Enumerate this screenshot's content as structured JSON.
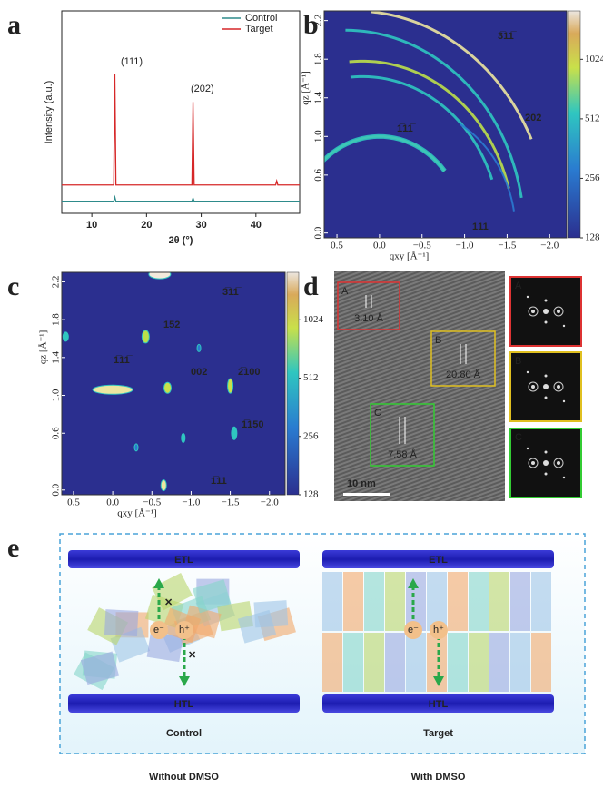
{
  "panel_labels": [
    "a",
    "b",
    "c",
    "d",
    "e"
  ],
  "chart_data": [
    {
      "type": "line",
      "xlabel": "2θ (°)",
      "ylabel": "Intensity (a.u.)",
      "xlim": [
        4.5,
        48
      ],
      "ylim": [
        0,
        1
      ],
      "xticks": [
        10,
        20,
        30,
        40
      ],
      "x": [
        4.5,
        14.0,
        14.2,
        14.4,
        28.3,
        28.5,
        28.7,
        43.6,
        43.8,
        44.0,
        48
      ],
      "series": [
        {
          "name": "Control",
          "color": "#2e8b8b",
          "values": [
            0.06,
            0.06,
            0.08,
            0.06,
            0.06,
            0.075,
            0.06,
            0.06,
            0.06,
            0.06,
            0.06
          ]
        },
        {
          "name": "Target",
          "color": "#d62728",
          "values": [
            0.14,
            0.14,
            0.69,
            0.14,
            0.14,
            0.55,
            0.14,
            0.14,
            0.16,
            0.14,
            0.14
          ]
        }
      ],
      "annotations": [
        "(111)",
        "(202)"
      ]
    },
    {
      "type": "heatmap",
      "xlabel": "qxy [Å⁻¹]",
      "ylabel": "qz [Å⁻¹]",
      "xlim": [
        0.65,
        -2.2
      ],
      "ylim": [
        -0.05,
        2.3
      ],
      "xticks": [
        0.5,
        {
          "value": 0,
          "label": "0.0"
        },
        {
          "value": -0.5,
          "label": "−0.5"
        },
        {
          "value": -1,
          "label": "−1.0"
        },
        {
          "value": -1.5,
          "label": "−1.5"
        },
        {
          "value": -2,
          "label": "−2.0"
        }
      ],
      "yticks": [
        {
          "value": 0,
          "label": "0.0"
        },
        0.6,
        {
          "value": 1,
          "label": "1.0"
        },
        1.4,
        1.8,
        2.2
      ],
      "colorbar": {
        "lim": [
          128,
          1800
        ],
        "ticks": [
          128,
          256,
          512,
          1024
        ],
        "log": true
      },
      "annotations": [
        "3̅11̅",
        "202",
        "1̅11̅",
        "1̅11"
      ]
    },
    {
      "type": "heatmap",
      "xlabel": "qxy [Å⁻¹]",
      "ylabel": "qz [Å⁻¹]",
      "xlim": [
        0.65,
        -2.2
      ],
      "ylim": [
        -0.05,
        2.3
      ],
      "xticks": [
        0.5,
        {
          "value": 0,
          "label": "0.0"
        },
        {
          "value": -0.5,
          "label": "−0.5"
        },
        {
          "value": -1,
          "label": "−1.0"
        },
        {
          "value": -1.5,
          "label": "−1.5"
        },
        {
          "value": -2,
          "label": "−2.0"
        }
      ],
      "yticks": [
        {
          "value": 0,
          "label": "0.0"
        },
        0.6,
        {
          "value": 1,
          "label": "1.0"
        },
        1.4,
        1.8,
        2.2
      ],
      "colorbar": {
        "lim": [
          128,
          1800
        ],
        "ticks": [
          128,
          256,
          512,
          1024
        ],
        "log": true
      },
      "annotations": [
        "3̅11̅",
        "1̅52",
        "1̅11̅",
        "002",
        "2̅100",
        "1̅150",
        "1̅11"
      ]
    }
  ],
  "tem": {
    "regions": [
      {
        "label": "A",
        "spacing": "3.10 Å"
      },
      {
        "label": "B",
        "spacing": "20.80 Å"
      },
      {
        "label": "C",
        "spacing": "7.58 Å"
      }
    ],
    "scale_bar": "10 nm",
    "fft_labels": [
      "A",
      "B",
      "C"
    ]
  },
  "schematic": {
    "top": "ETL",
    "bottom": "HTL",
    "electron": "e⁻",
    "hole": "h⁺",
    "left": {
      "title": "Control",
      "caption": "Without DMSO"
    },
    "right": {
      "title": "Target",
      "caption": "With DMSO"
    }
  }
}
